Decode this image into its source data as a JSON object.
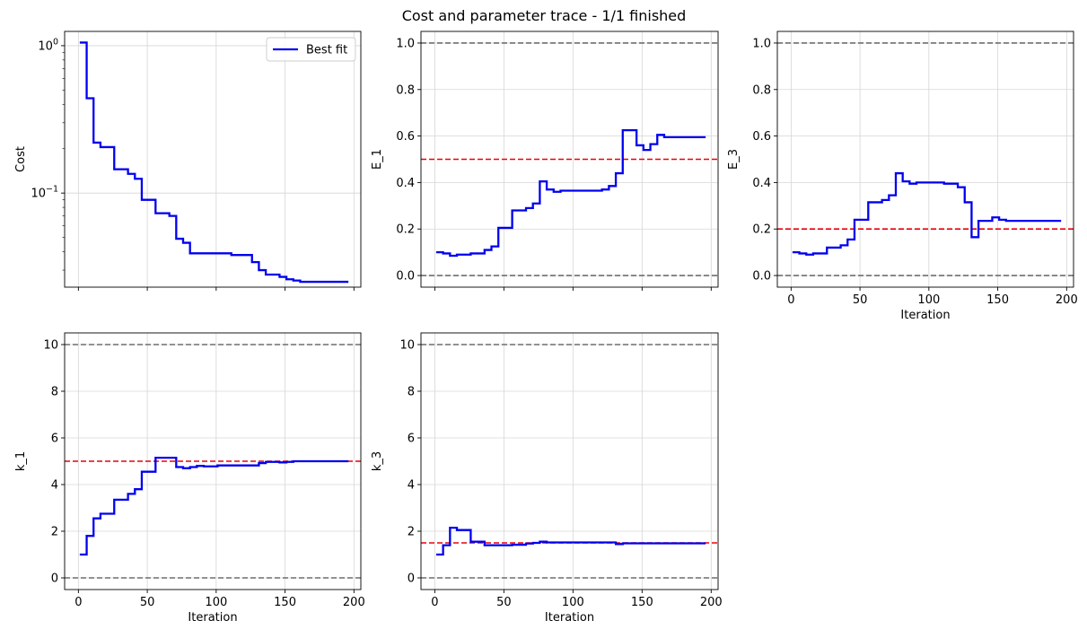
{
  "figure": {
    "title": "Cost and parameter trace - 1/1 finished"
  },
  "colors": {
    "best_fit": "#0000ee",
    "bound": "#6e6e6e",
    "true_value": "#e8000b",
    "grid": "#d6d6d6"
  },
  "chart_data": [
    {
      "id": "cost",
      "type": "line",
      "drawstyle": "steps-post",
      "ylabel": "Cost",
      "xlabel": "",
      "yscale": "log",
      "ylim": [
        0.023,
        1.25
      ],
      "xlim": [
        -10,
        205
      ],
      "xticks": [
        0,
        50,
        100,
        150,
        200
      ],
      "show_xticklabels": false,
      "yticks": [
        {
          "value": 1,
          "label": "10^0"
        },
        {
          "value": 0.1,
          "label": "10^-1"
        }
      ],
      "grid": true,
      "legend": {
        "position": "top-right",
        "entries": [
          "Best fit"
        ]
      },
      "series": [
        {
          "name": "Best fit",
          "x": [
            1,
            6,
            11,
            16,
            26,
            36,
            41,
            46,
            56,
            66,
            71,
            76,
            81,
            101,
            111,
            126,
            131,
            136,
            146,
            151,
            156,
            161,
            196
          ],
          "y": [
            1.05,
            0.44,
            0.22,
            0.205,
            0.145,
            0.135,
            0.125,
            0.09,
            0.073,
            0.07,
            0.049,
            0.046,
            0.039,
            0.039,
            0.038,
            0.034,
            0.03,
            0.028,
            0.027,
            0.026,
            0.0255,
            0.025,
            0.025
          ]
        }
      ],
      "hlines": []
    },
    {
      "id": "E_1",
      "type": "line",
      "drawstyle": "steps-post",
      "ylabel": "E_1",
      "xlabel": "",
      "yscale": "linear",
      "ylim": [
        -0.05,
        1.05
      ],
      "xlim": [
        -10,
        205
      ],
      "xticks": [
        0,
        50,
        100,
        150,
        200
      ],
      "show_xticklabels": false,
      "yticks": [
        {
          "value": 0,
          "label": "0.0"
        },
        {
          "value": 0.2,
          "label": "0.2"
        },
        {
          "value": 0.4,
          "label": "0.4"
        },
        {
          "value": 0.6,
          "label": "0.6"
        },
        {
          "value": 0.8,
          "label": "0.8"
        },
        {
          "value": 1,
          "label": "1.0"
        }
      ],
      "grid": true,
      "series": [
        {
          "name": "",
          "x": [
            1,
            6,
            11,
            16,
            26,
            36,
            41,
            46,
            56,
            66,
            71,
            76,
            81,
            86,
            91,
            101,
            111,
            121,
            126,
            131,
            136,
            146,
            151,
            156,
            161,
            166,
            196
          ],
          "y": [
            0.1,
            0.095,
            0.085,
            0.09,
            0.095,
            0.11,
            0.125,
            0.205,
            0.28,
            0.29,
            0.31,
            0.405,
            0.37,
            0.36,
            0.365,
            0.365,
            0.365,
            0.37,
            0.385,
            0.44,
            0.625,
            0.56,
            0.54,
            0.565,
            0.605,
            0.595,
            0.595
          ]
        }
      ],
      "hlines": [
        {
          "y": 0,
          "kind": "bound"
        },
        {
          "y": 1,
          "kind": "bound"
        },
        {
          "y": 0.5,
          "kind": "true_value"
        }
      ]
    },
    {
      "id": "E_3",
      "type": "line",
      "drawstyle": "steps-post",
      "ylabel": "E_3",
      "xlabel": "Iteration",
      "yscale": "linear",
      "ylim": [
        -0.05,
        1.05
      ],
      "xlim": [
        -10,
        205
      ],
      "xticks": [
        0,
        50,
        100,
        150,
        200
      ],
      "show_xticklabels": true,
      "yticks": [
        {
          "value": 0,
          "label": "0.0"
        },
        {
          "value": 0.2,
          "label": "0.2"
        },
        {
          "value": 0.4,
          "label": "0.4"
        },
        {
          "value": 0.6,
          "label": "0.6"
        },
        {
          "value": 0.8,
          "label": "0.8"
        },
        {
          "value": 1,
          "label": "1.0"
        }
      ],
      "grid": true,
      "series": [
        {
          "name": "",
          "x": [
            1,
            6,
            11,
            16,
            26,
            36,
            41,
            46,
            56,
            66,
            71,
            76,
            81,
            86,
            91,
            101,
            111,
            121,
            126,
            131,
            136,
            146,
            151,
            156,
            161,
            166,
            196
          ],
          "y": [
            0.1,
            0.095,
            0.09,
            0.095,
            0.12,
            0.13,
            0.155,
            0.24,
            0.315,
            0.325,
            0.345,
            0.44,
            0.405,
            0.395,
            0.4,
            0.4,
            0.395,
            0.38,
            0.315,
            0.165,
            0.235,
            0.25,
            0.24,
            0.235,
            0.235,
            0.235,
            0.235
          ]
        }
      ],
      "hlines": [
        {
          "y": 0,
          "kind": "bound"
        },
        {
          "y": 1,
          "kind": "bound"
        },
        {
          "y": 0.2,
          "kind": "true_value"
        }
      ]
    },
    {
      "id": "k_1",
      "type": "line",
      "drawstyle": "steps-post",
      "ylabel": "k_1",
      "xlabel": "Iteration",
      "yscale": "linear",
      "ylim": [
        -0.5,
        10.5
      ],
      "xlim": [
        -10,
        205
      ],
      "xticks": [
        0,
        50,
        100,
        150,
        200
      ],
      "show_xticklabels": true,
      "yticks": [
        {
          "value": 0,
          "label": "0"
        },
        {
          "value": 2,
          "label": "2"
        },
        {
          "value": 4,
          "label": "4"
        },
        {
          "value": 6,
          "label": "6"
        },
        {
          "value": 8,
          "label": "8"
        },
        {
          "value": 10,
          "label": "10"
        }
      ],
      "grid": true,
      "series": [
        {
          "name": "",
          "x": [
            1,
            6,
            11,
            16,
            26,
            36,
            41,
            46,
            56,
            71,
            76,
            81,
            86,
            91,
            101,
            131,
            136,
            146,
            151,
            156,
            196
          ],
          "y": [
            1,
            1.8,
            2.55,
            2.75,
            3.35,
            3.6,
            3.8,
            4.55,
            5.15,
            4.75,
            4.7,
            4.75,
            4.8,
            4.78,
            4.82,
            4.92,
            4.97,
            4.95,
            4.97,
            5,
            5
          ]
        }
      ],
      "hlines": [
        {
          "y": 0,
          "kind": "bound"
        },
        {
          "y": 10,
          "kind": "bound"
        },
        {
          "y": 5,
          "kind": "true_value"
        }
      ]
    },
    {
      "id": "k_3",
      "type": "line",
      "drawstyle": "steps-post",
      "ylabel": "k_3",
      "xlabel": "Iteration",
      "yscale": "linear",
      "ylim": [
        -0.5,
        10.5
      ],
      "xlim": [
        -10,
        205
      ],
      "xticks": [
        0,
        50,
        100,
        150,
        200
      ],
      "show_xticklabels": true,
      "yticks": [
        {
          "value": 0,
          "label": "0"
        },
        {
          "value": 2,
          "label": "2"
        },
        {
          "value": 4,
          "label": "4"
        },
        {
          "value": 6,
          "label": "6"
        },
        {
          "value": 8,
          "label": "8"
        },
        {
          "value": 10,
          "label": "10"
        }
      ],
      "grid": true,
      "series": [
        {
          "name": "",
          "x": [
            1,
            6,
            11,
            16,
            26,
            36,
            56,
            66,
            71,
            76,
            81,
            131,
            136,
            196
          ],
          "y": [
            1,
            1.4,
            2.15,
            2.05,
            1.55,
            1.4,
            1.42,
            1.47,
            1.5,
            1.55,
            1.52,
            1.45,
            1.48,
            1.48
          ]
        }
      ],
      "hlines": [
        {
          "y": 0,
          "kind": "bound"
        },
        {
          "y": 10,
          "kind": "bound"
        },
        {
          "y": 1.5,
          "kind": "true_value"
        }
      ]
    }
  ]
}
